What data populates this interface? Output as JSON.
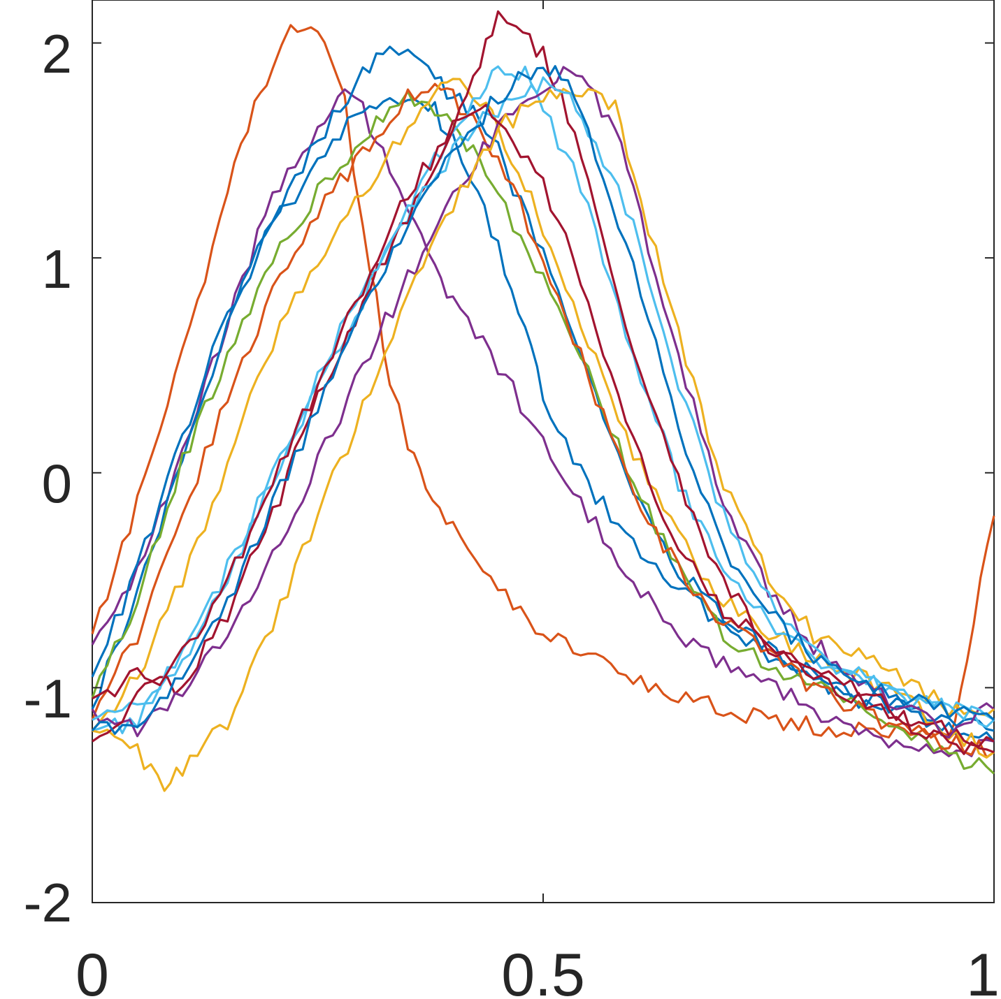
{
  "chart_data": {
    "type": "line",
    "title": "",
    "xlabel": "",
    "ylabel": "",
    "xlim": [
      0,
      1
    ],
    "ylim": [
      -2,
      2.2
    ],
    "grid": false,
    "legend": "none",
    "x_ticks": [
      0,
      0.5,
      1
    ],
    "x_tick_labels": [
      "0",
      "0.5",
      "1"
    ],
    "y_ticks": [
      -2,
      -1,
      0,
      1,
      2
    ],
    "y_tick_labels": [
      "-2",
      "-1",
      "0",
      "1",
      "2"
    ],
    "colors": [
      "#0072BD",
      "#D95319",
      "#EDB120",
      "#7E2F8E",
      "#77AC30",
      "#4DBEEE",
      "#A2142F"
    ],
    "series": [
      {
        "color": "#D95319",
        "x": [
          0,
          0.05,
          0.1,
          0.15,
          0.18,
          0.2,
          0.22,
          0.25,
          0.28,
          0.3,
          0.33,
          0.35,
          0.37,
          0.4,
          0.45,
          0.5,
          0.55,
          0.6,
          0.65,
          0.7,
          0.75,
          0.8,
          0.85,
          0.9,
          0.93,
          0.95,
          0.97,
          1.0
        ],
        "y": [
          -0.75,
          -0.15,
          0.55,
          1.3,
          1.7,
          1.85,
          2.05,
          2.08,
          1.72,
          1.15,
          0.45,
          0.1,
          -0.05,
          -0.25,
          -0.55,
          -0.75,
          -0.85,
          -0.95,
          -1.05,
          -1.1,
          -1.15,
          -1.18,
          -1.2,
          -1.22,
          -1.2,
          -1.25,
          -0.85,
          -0.2
        ]
      },
      {
        "color": "#7E2F8E",
        "x": [
          0,
          0.05,
          0.1,
          0.15,
          0.2,
          0.25,
          0.28,
          0.3,
          0.33,
          0.35,
          0.38,
          0.4,
          0.45,
          0.5,
          0.55,
          0.6,
          0.65,
          0.7,
          0.75,
          0.8,
          0.85,
          0.9,
          0.95,
          1.0
        ],
        "y": [
          -0.8,
          -0.45,
          0.1,
          0.7,
          1.3,
          1.6,
          1.75,
          1.7,
          1.4,
          1.2,
          0.95,
          0.8,
          0.5,
          0.15,
          -0.2,
          -0.5,
          -0.75,
          -0.9,
          -1.0,
          -1.1,
          -1.2,
          -1.25,
          -1.3,
          -1.25
        ]
      },
      {
        "color": "#0072BD",
        "x": [
          0,
          0.05,
          0.1,
          0.15,
          0.2,
          0.25,
          0.3,
          0.33,
          0.35,
          0.38,
          0.4,
          0.42,
          0.45,
          0.48,
          0.5,
          0.55,
          0.6,
          0.65,
          0.7,
          0.75,
          0.8,
          0.85,
          0.9,
          0.95,
          1.0
        ],
        "y": [
          -0.95,
          -0.45,
          0.15,
          0.75,
          1.15,
          1.45,
          1.7,
          1.75,
          1.72,
          1.68,
          1.55,
          1.35,
          1.05,
          0.65,
          0.35,
          -0.05,
          -0.35,
          -0.55,
          -0.7,
          -0.85,
          -0.95,
          -1.05,
          -1.1,
          -1.15,
          -1.2
        ]
      },
      {
        "color": "#0072BD",
        "x": [
          0,
          0.05,
          0.1,
          0.15,
          0.2,
          0.25,
          0.3,
          0.33,
          0.35,
          0.38,
          0.4,
          0.43,
          0.45,
          0.5,
          0.55,
          0.6,
          0.65,
          0.7,
          0.75,
          0.8,
          0.85,
          0.9,
          0.95,
          1.0
        ],
        "y": [
          -1.1,
          -0.55,
          0.05,
          0.7,
          1.2,
          1.55,
          1.85,
          2.0,
          1.95,
          1.85,
          1.75,
          1.65,
          1.5,
          1.0,
          0.45,
          -0.1,
          -0.45,
          -0.65,
          -0.8,
          -0.95,
          -1.05,
          -1.1,
          -1.2,
          -1.25
        ]
      },
      {
        "color": "#77AC30",
        "x": [
          0,
          0.05,
          0.1,
          0.15,
          0.2,
          0.25,
          0.3,
          0.33,
          0.35,
          0.38,
          0.4,
          0.43,
          0.45,
          0.5,
          0.55,
          0.6,
          0.65,
          0.7,
          0.75,
          0.8,
          0.85,
          0.9,
          0.95,
          1.0
        ],
        "y": [
          -1.05,
          -0.6,
          0.05,
          0.55,
          1.0,
          1.3,
          1.55,
          1.7,
          1.75,
          1.7,
          1.6,
          1.45,
          1.3,
          0.9,
          0.45,
          -0.05,
          -0.45,
          -0.75,
          -0.9,
          -1.0,
          -1.1,
          -1.2,
          -1.3,
          -1.4
        ]
      },
      {
        "color": "#D95319",
        "x": [
          0,
          0.05,
          0.1,
          0.15,
          0.2,
          0.25,
          0.3,
          0.33,
          0.35,
          0.38,
          0.4,
          0.43,
          0.45,
          0.5,
          0.55,
          0.6,
          0.65,
          0.7,
          0.75,
          0.8,
          0.85,
          0.9,
          0.95,
          1.0
        ],
        "y": [
          -1.15,
          -0.75,
          -0.2,
          0.35,
          0.85,
          1.2,
          1.5,
          1.65,
          1.75,
          1.8,
          1.75,
          1.6,
          1.45,
          1.0,
          0.45,
          -0.1,
          -0.45,
          -0.7,
          -0.85,
          -1.0,
          -1.1,
          -1.2,
          -1.25,
          -1.3
        ]
      },
      {
        "color": "#EDB120",
        "x": [
          0,
          0.05,
          0.1,
          0.15,
          0.2,
          0.25,
          0.3,
          0.35,
          0.38,
          0.4,
          0.43,
          0.45,
          0.48,
          0.5,
          0.55,
          0.6,
          0.65,
          0.7,
          0.75,
          0.8,
          0.85,
          0.9,
          0.95,
          1.0
        ],
        "y": [
          -1.2,
          -0.95,
          -0.5,
          0.05,
          0.6,
          1.0,
          1.3,
          1.6,
          1.75,
          1.82,
          1.75,
          1.6,
          1.35,
          1.1,
          0.6,
          0.1,
          -0.3,
          -0.6,
          -0.75,
          -0.85,
          -0.95,
          -1.05,
          -1.2,
          -1.3
        ]
      },
      {
        "color": "#4DBEEE",
        "x": [
          0,
          0.05,
          0.1,
          0.15,
          0.2,
          0.25,
          0.3,
          0.35,
          0.38,
          0.4,
          0.43,
          0.45,
          0.48,
          0.5,
          0.55,
          0.6,
          0.65,
          0.7,
          0.75,
          0.8,
          0.85,
          0.9,
          0.95,
          1.0
        ],
        "y": [
          -1.2,
          -1.15,
          -0.9,
          -0.5,
          -0.05,
          0.4,
          0.8,
          1.2,
          1.45,
          1.6,
          1.75,
          1.9,
          1.85,
          1.7,
          1.25,
          0.55,
          -0.05,
          -0.45,
          -0.7,
          -0.85,
          -0.95,
          -1.05,
          -1.1,
          -1.15
        ]
      },
      {
        "color": "#A2142F",
        "x": [
          0,
          0.05,
          0.1,
          0.15,
          0.2,
          0.25,
          0.3,
          0.35,
          0.4,
          0.43,
          0.45,
          0.47,
          0.5,
          0.52,
          0.55,
          0.6,
          0.65,
          0.7,
          0.75,
          0.8,
          0.85,
          0.9,
          0.95,
          1.0
        ],
        "y": [
          -1.05,
          -0.95,
          -1.0,
          -0.65,
          -0.2,
          0.35,
          0.8,
          1.2,
          1.6,
          1.9,
          2.15,
          2.05,
          1.95,
          1.75,
          1.35,
          0.55,
          -0.05,
          -0.5,
          -0.8,
          -0.95,
          -1.05,
          -1.15,
          -1.2,
          -1.25
        ]
      },
      {
        "color": "#7E2F8E",
        "x": [
          0,
          0.05,
          0.1,
          0.15,
          0.2,
          0.25,
          0.3,
          0.35,
          0.4,
          0.45,
          0.5,
          0.53,
          0.55,
          0.58,
          0.6,
          0.65,
          0.7,
          0.75,
          0.8,
          0.85,
          0.9,
          0.95,
          1.0
        ],
        "y": [
          -1.1,
          -1.2,
          -1.0,
          -0.75,
          -0.4,
          0.05,
          0.5,
          0.9,
          1.3,
          1.6,
          1.8,
          1.88,
          1.8,
          1.6,
          1.3,
          0.55,
          -0.15,
          -0.55,
          -0.8,
          -0.95,
          -1.1,
          -1.2,
          -1.1
        ]
      },
      {
        "color": "#EDB120",
        "x": [
          0,
          0.05,
          0.08,
          0.1,
          0.15,
          0.2,
          0.25,
          0.3,
          0.35,
          0.4,
          0.45,
          0.5,
          0.53,
          0.55,
          0.58,
          0.6,
          0.65,
          0.7,
          0.75,
          0.8,
          0.85,
          0.9,
          0.95,
          1.0
        ],
        "y": [
          -1.2,
          -1.3,
          -1.45,
          -1.4,
          -1.15,
          -0.7,
          -0.2,
          0.3,
          0.8,
          1.25,
          1.6,
          1.75,
          1.8,
          1.78,
          1.7,
          1.4,
          0.65,
          -0.05,
          -0.5,
          -0.75,
          -0.85,
          -0.95,
          -1.1,
          -1.1
        ]
      },
      {
        "color": "#4DBEEE",
        "x": [
          0,
          0.05,
          0.1,
          0.15,
          0.2,
          0.25,
          0.3,
          0.35,
          0.4,
          0.45,
          0.48,
          0.5,
          0.53,
          0.55,
          0.6,
          0.65,
          0.7,
          0.75,
          0.8,
          0.85,
          0.9,
          0.95,
          1.0
        ],
        "y": [
          -1.15,
          -1.1,
          -0.85,
          -0.45,
          0.0,
          0.45,
          0.85,
          1.2,
          1.5,
          1.7,
          1.75,
          1.8,
          1.75,
          1.6,
          1.15,
          0.4,
          -0.2,
          -0.6,
          -0.85,
          -0.95,
          -1.0,
          -1.1,
          -1.15
        ]
      },
      {
        "color": "#A2142F",
        "x": [
          0,
          0.05,
          0.1,
          0.15,
          0.2,
          0.25,
          0.3,
          0.35,
          0.4,
          0.43,
          0.45,
          0.5,
          0.55,
          0.6,
          0.65,
          0.7,
          0.75,
          0.8,
          0.85,
          0.9,
          0.95,
          1.0
        ],
        "y": [
          -1.25,
          -1.05,
          -0.85,
          -0.5,
          -0.05,
          0.4,
          0.85,
          1.3,
          1.6,
          1.7,
          1.65,
          1.35,
          0.8,
          0.15,
          -0.35,
          -0.65,
          -0.8,
          -0.9,
          -1.0,
          -1.15,
          -1.25,
          -1.3
        ]
      },
      {
        "color": "#0072BD",
        "x": [
          0,
          0.05,
          0.1,
          0.15,
          0.2,
          0.25,
          0.3,
          0.35,
          0.4,
          0.45,
          0.48,
          0.5,
          0.52,
          0.55,
          0.6,
          0.65,
          0.7,
          0.75,
          0.8,
          0.85,
          0.9,
          0.95,
          1.0
        ],
        "y": [
          -1.2,
          -1.15,
          -0.95,
          -0.6,
          -0.15,
          0.3,
          0.75,
          1.15,
          1.5,
          1.75,
          1.85,
          1.9,
          1.85,
          1.6,
          0.95,
          0.2,
          -0.35,
          -0.65,
          -0.85,
          -0.95,
          -1.05,
          -1.1,
          -1.15
        ]
      }
    ]
  }
}
